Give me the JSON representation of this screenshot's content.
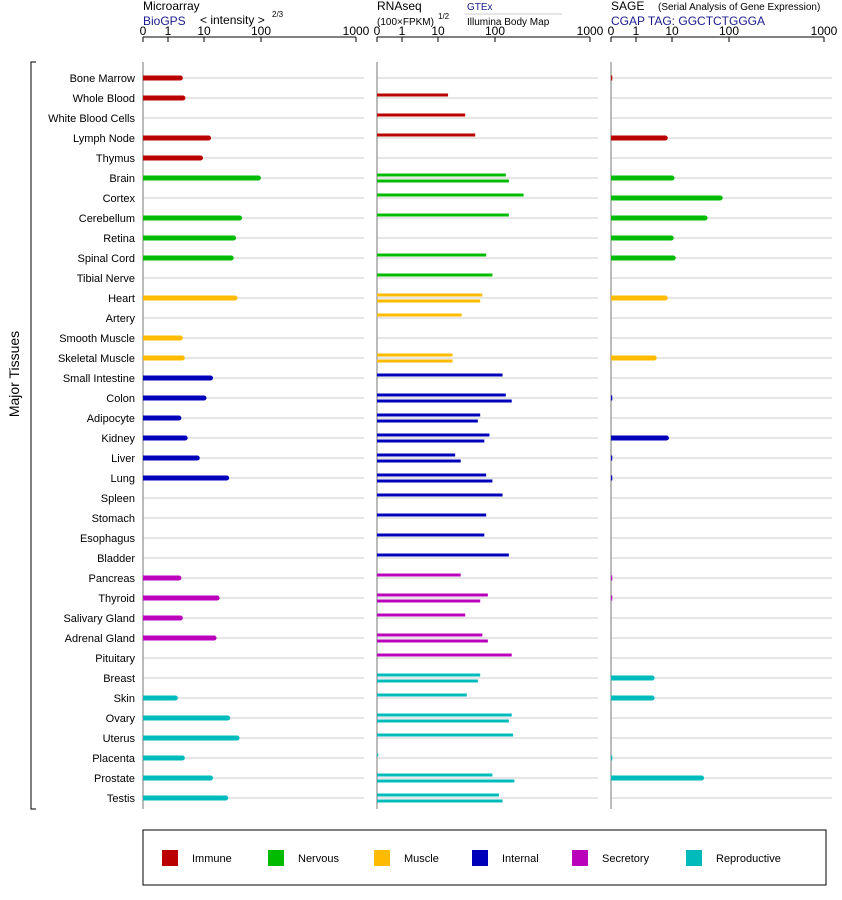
{
  "chart_data": {
    "type": "bar",
    "panels": {
      "microarray": {
        "title": "Microarray",
        "source": "BioGPS",
        "unit_label": "< intensity >",
        "unit_exp": "2/3",
        "ticks": [
          "0",
          "1",
          "10",
          "100",
          "1000"
        ]
      },
      "rnaseq": {
        "title": "RNAseq",
        "unit_label": "(100×FPKM)",
        "unit_exp": "1/2",
        "source1": "GTEx",
        "source2": "Illumina Body Map",
        "ticks": [
          "0",
          "1",
          "10",
          "100",
          "1000"
        ]
      },
      "sage": {
        "title": "SAGE",
        "subtitle": "(Serial Analysis of Gene Expression)",
        "tag": "CGAP TAG: GGCTCTGGGA",
        "ticks": [
          "0",
          "1",
          "10",
          "100",
          "1000"
        ]
      }
    },
    "ylabel": "Major Tissues",
    "categories": [
      "Bone Marrow",
      "Whole Blood",
      "White Blood Cells",
      "Lymph Node",
      "Thymus",
      "Brain",
      "Cortex",
      "Cerebellum",
      "Retina",
      "Spinal Cord",
      "Tibial Nerve",
      "Heart",
      "Artery",
      "Smooth Muscle",
      "Skeletal Muscle",
      "Small Intestine",
      "Colon",
      "Adipocyte",
      "Kidney",
      "Liver",
      "Lung",
      "Spleen",
      "Stomach",
      "Esophagus",
      "Bladder",
      "Pancreas",
      "Thyroid",
      "Salivary Gland",
      "Adrenal Gland",
      "Pituitary",
      "Breast",
      "Skin",
      "Ovary",
      "Uterus",
      "Placenta",
      "Prostate",
      "Testis"
    ],
    "groups": [
      "immune",
      "immune",
      "immune",
      "immune",
      "immune",
      "nervous",
      "nervous",
      "nervous",
      "nervous",
      "nervous",
      "nervous",
      "muscle",
      "muscle",
      "muscle",
      "muscle",
      "internal",
      "internal",
      "internal",
      "internal",
      "internal",
      "internal",
      "internal",
      "internal",
      "internal",
      "internal",
      "secretory",
      "secretory",
      "secretory",
      "secretory",
      "secretory",
      "reproductive",
      "reproductive",
      "reproductive",
      "reproductive",
      "reproductive",
      "reproductive",
      "reproductive"
    ],
    "colors": {
      "immune": "#bb0000",
      "nervous": "#00bb00",
      "muscle": "#ffbb00",
      "internal": "#0000bb",
      "secretory": "#bb00bb",
      "reproductive": "#00bbbb"
    },
    "microarray_values": [
      2.2,
      2.6,
      null,
      12,
      8,
      90,
      null,
      42,
      33,
      30,
      null,
      35,
      null,
      2.2,
      2.5,
      13,
      10,
      2.0,
      3.0,
      6.5,
      25,
      null,
      null,
      null,
      null,
      2.0,
      17,
      2.2,
      15,
      null,
      null,
      1.6,
      26,
      38,
      2.5,
      13,
      24
    ],
    "rnaseq_gtex": [
      null,
      15,
      30,
      45,
      null,
      130,
      200,
      140,
      null,
      70,
      90,
      60,
      26,
      null,
      18,
      120,
      130,
      55,
      80,
      20,
      70,
      120,
      70,
      65,
      140,
      25,
      75,
      30,
      60,
      150,
      55,
      32,
      150,
      155,
      0,
      90,
      110
    ],
    "rnaseq_ibm": [
      null,
      null,
      null,
      null,
      null,
      140,
      null,
      null,
      null,
      null,
      null,
      55,
      null,
      null,
      18,
      null,
      150,
      50,
      65,
      25,
      90,
      null,
      null,
      null,
      null,
      null,
      55,
      null,
      75,
      null,
      50,
      null,
      140,
      null,
      null,
      160,
      120
    ],
    "sage_values": [
      0.05,
      null,
      null,
      6.5,
      null,
      10,
      70,
      38,
      9.5,
      10.5,
      null,
      6.5,
      null,
      null,
      3.2,
      null,
      0.05,
      null,
      7,
      0.05,
      0.05,
      null,
      null,
      null,
      null,
      0.05,
      0.05,
      null,
      null,
      null,
      2.8,
      2.8,
      null,
      null,
      0.05,
      33,
      null
    ],
    "legend": [
      {
        "key": "immune",
        "label": "Immune"
      },
      {
        "key": "nervous",
        "label": "Nervous"
      },
      {
        "key": "muscle",
        "label": "Muscle"
      },
      {
        "key": "internal",
        "label": "Internal"
      },
      {
        "key": "secretory",
        "label": "Secretory"
      },
      {
        "key": "reproductive",
        "label": "Reproductive"
      }
    ]
  }
}
